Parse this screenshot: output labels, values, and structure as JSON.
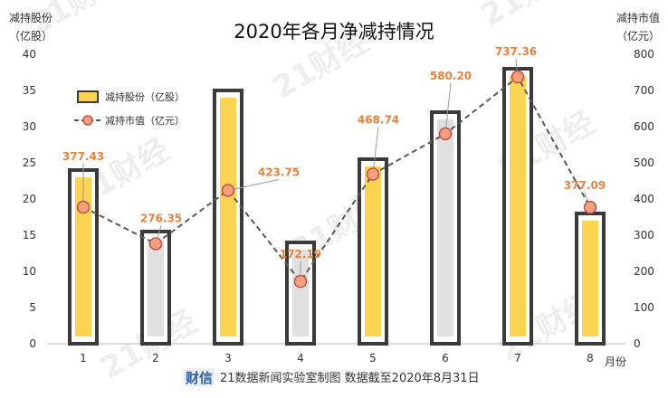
{
  "chart_data": {
    "type": "bar",
    "title": "2020年各月净减持情况",
    "categories": [
      "1",
      "2",
      "3",
      "4",
      "5",
      "6",
      "7",
      "8"
    ],
    "xlabel": "月份",
    "left_axis": {
      "label_line1": "减持股份",
      "label_line2": "（亿股）",
      "ylim": [
        0,
        40
      ],
      "ticks": [
        0,
        5,
        10,
        15,
        20,
        25,
        30,
        35,
        40
      ]
    },
    "right_axis": {
      "label_line1": "减持市值",
      "label_line2": "（亿元）",
      "ylim": [
        0,
        800
      ],
      "ticks": [
        0,
        100,
        200,
        300,
        400,
        500,
        600,
        700,
        800
      ]
    },
    "series": [
      {
        "name": "减持股份（亿股）",
        "type": "bar",
        "axis": "left",
        "values": [
          24,
          15.5,
          35,
          14,
          25.5,
          32,
          38,
          18
        ],
        "fill_colors": [
          "#fdd34f",
          "#e0e0e0",
          "#fdd34f",
          "#e0e0e0",
          "#fdd34f",
          "#e0e0e0",
          "#fdd34f",
          "#fdd34f"
        ]
      },
      {
        "name": "减持市值（亿元）",
        "type": "line",
        "axis": "right",
        "values": [
          377.43,
          276.35,
          423.75,
          172.19,
          468.74,
          580.2,
          737.36,
          377.09
        ],
        "labels": [
          "377.43",
          "276.35",
          "423.75",
          "172.19",
          "468.74",
          "580.20",
          "737.36",
          "377.09"
        ]
      }
    ],
    "legend_position": "top-left",
    "grid": false,
    "colors": {
      "bar_outline": "#3a3a3a",
      "line": "#595959",
      "marker_fill": "#f4a07d",
      "marker_edge": "#c0504d",
      "label": "#e8823e"
    }
  },
  "footer": {
    "logo_text": "财信",
    "text": "21数据新闻实验室制图   数据截至2020年8月31日"
  },
  "watermark": "21财经"
}
